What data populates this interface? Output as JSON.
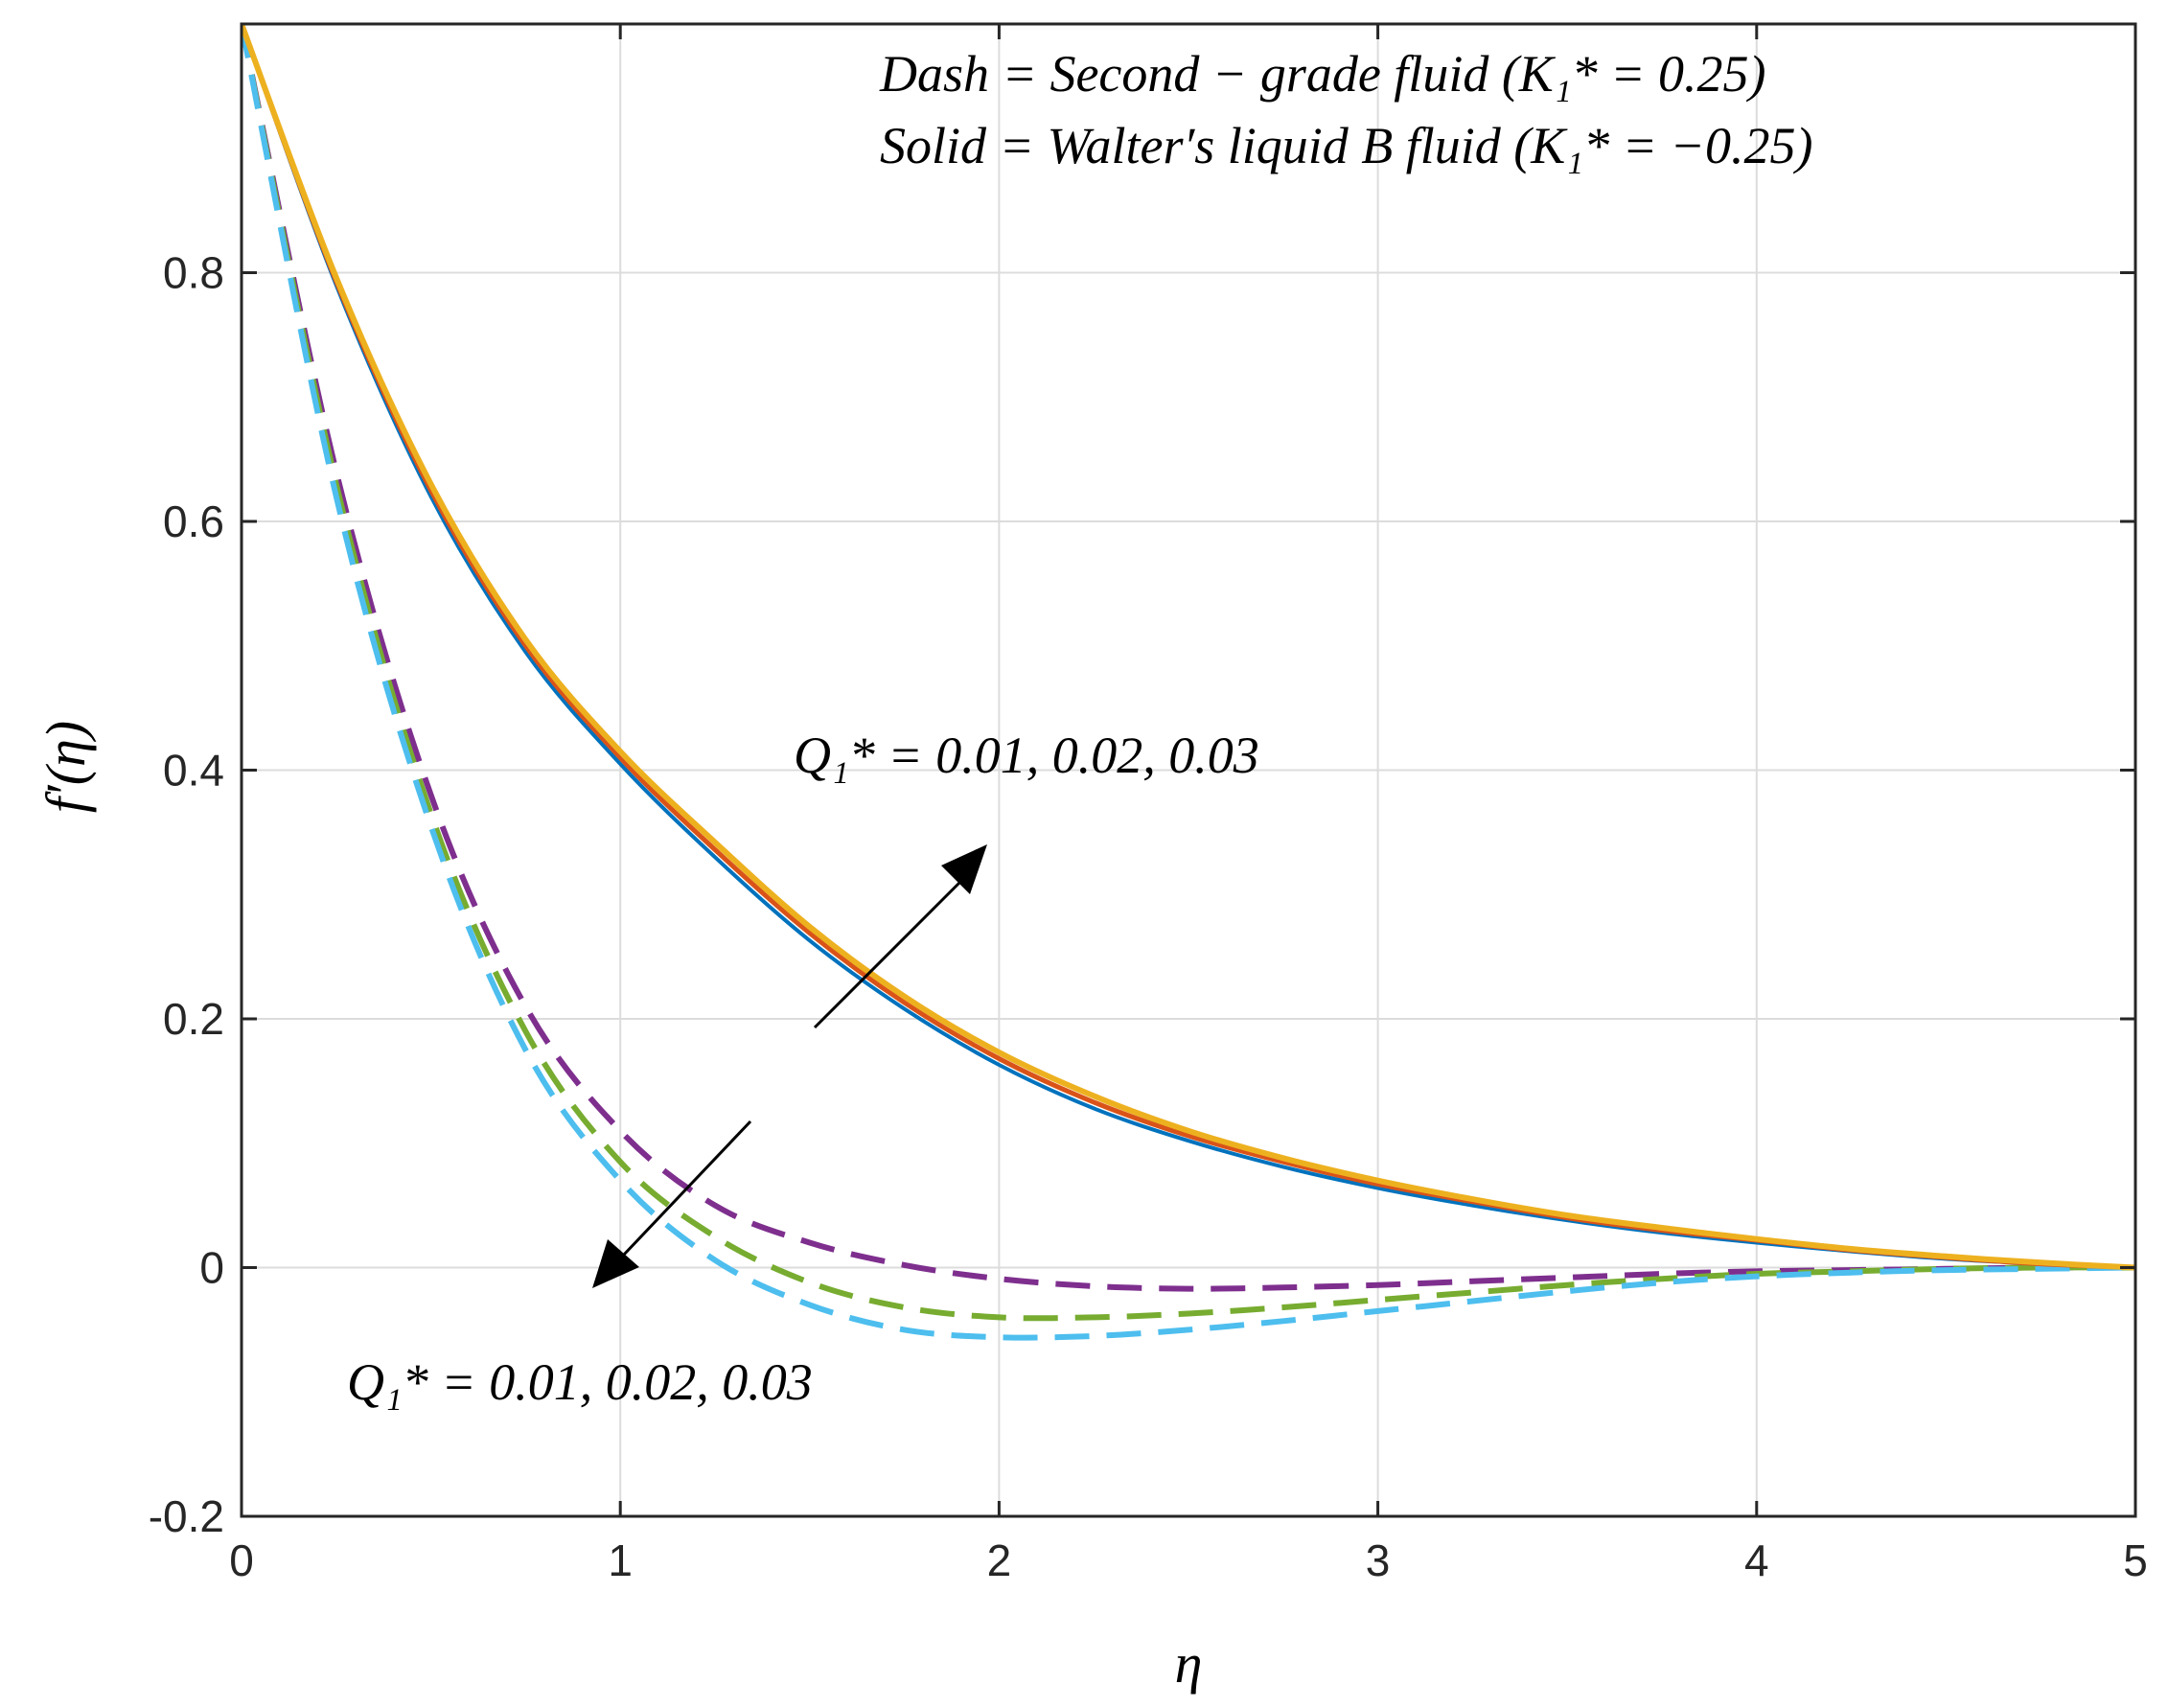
{
  "chart_data": {
    "type": "line",
    "xlabel": "η",
    "ylabel": "f′(η)",
    "xlim": [
      0,
      5
    ],
    "ylim": [
      -0.2,
      1.0
    ],
    "grid": true,
    "x_ticks": [
      {
        "value": 0,
        "label": "0"
      },
      {
        "value": 1,
        "label": "1"
      },
      {
        "value": 2,
        "label": "2"
      },
      {
        "value": 3,
        "label": "3"
      },
      {
        "value": 4,
        "label": "4"
      },
      {
        "value": 5,
        "label": "5"
      }
    ],
    "y_ticks": [
      {
        "value": -0.2,
        "label": "-0.2"
      },
      {
        "value": 0,
        "label": "0"
      },
      {
        "value": 0.2,
        "label": "0.2"
      },
      {
        "value": 0.4,
        "label": "0.4"
      },
      {
        "value": 0.6,
        "label": "0.6"
      },
      {
        "value": 0.8,
        "label": "0.8"
      }
    ],
    "legend_text": {
      "line1": "Dash = Second − grade fluid (K₁* = 0.25)",
      "line2": "Solid = Walter′s liquid B fluid (K₁* = −0.25)"
    },
    "annotations": {
      "upper": "Q₁* = 0.01, 0.02, 0.03",
      "lower": "Q₁* = 0.01, 0.02, 0.03"
    },
    "x": [
      0,
      0.25,
      0.5,
      0.75,
      1.0,
      1.25,
      1.5,
      1.75,
      2.0,
      2.25,
      2.5,
      2.75,
      3.0,
      3.25,
      3.5,
      3.75,
      4.0,
      4.25,
      4.5,
      4.75,
      5.0
    ],
    "series": [
      {
        "name": "Solid Q1*=0.01",
        "style": "solid",
        "color": "#0072BD",
        "width": 4,
        "values": [
          1.0,
          0.79,
          0.62,
          0.495,
          0.405,
          0.33,
          0.263,
          0.208,
          0.163,
          0.128,
          0.102,
          0.081,
          0.064,
          0.05,
          0.038,
          0.028,
          0.02,
          0.013,
          0.007,
          0.003,
          0.0
        ]
      },
      {
        "name": "Solid Q1*=0.02",
        "style": "solid",
        "color": "#D95319",
        "width": 5,
        "values": [
          1.0,
          0.793,
          0.625,
          0.5,
          0.41,
          0.336,
          0.269,
          0.213,
          0.168,
          0.133,
          0.106,
          0.085,
          0.067,
          0.053,
          0.04,
          0.03,
          0.022,
          0.014,
          0.008,
          0.003,
          0.0
        ]
      },
      {
        "name": "Solid Q1*=0.03",
        "style": "solid",
        "color": "#EDB120",
        "width": 6,
        "values": [
          1.0,
          0.796,
          0.63,
          0.505,
          0.415,
          0.342,
          0.274,
          0.218,
          0.173,
          0.138,
          0.11,
          0.088,
          0.07,
          0.055,
          0.042,
          0.032,
          0.023,
          0.015,
          0.009,
          0.004,
          0.0
        ]
      },
      {
        "name": "Dash Q1*=0.01",
        "style": "dashed",
        "color": "#7E2F8E",
        "width": 6,
        "values": [
          1.0,
          0.64,
          0.38,
          0.21,
          0.11,
          0.05,
          0.02,
          0.002,
          -0.009,
          -0.015,
          -0.017,
          -0.016,
          -0.014,
          -0.011,
          -0.008,
          -0.005,
          -0.003,
          -0.002,
          -0.001,
          0.0,
          0.0
        ]
      },
      {
        "name": "Dash Q1*=0.02",
        "style": "dashed",
        "color": "#77AC30",
        "width": 6,
        "values": [
          1.0,
          0.63,
          0.365,
          0.19,
          0.085,
          0.025,
          -0.012,
          -0.032,
          -0.04,
          -0.04,
          -0.037,
          -0.032,
          -0.026,
          -0.02,
          -0.014,
          -0.009,
          -0.005,
          -0.003,
          -0.001,
          0.0,
          0.0
        ]
      },
      {
        "name": "Dash Q1*=0.03",
        "style": "dashed",
        "color": "#4DBEEE",
        "width": 6,
        "values": [
          1.0,
          0.62,
          0.355,
          0.175,
          0.07,
          0.006,
          -0.03,
          -0.05,
          -0.056,
          -0.055,
          -0.05,
          -0.043,
          -0.035,
          -0.027,
          -0.019,
          -0.012,
          -0.007,
          -0.004,
          -0.002,
          -0.001,
          0.0
        ]
      }
    ]
  }
}
